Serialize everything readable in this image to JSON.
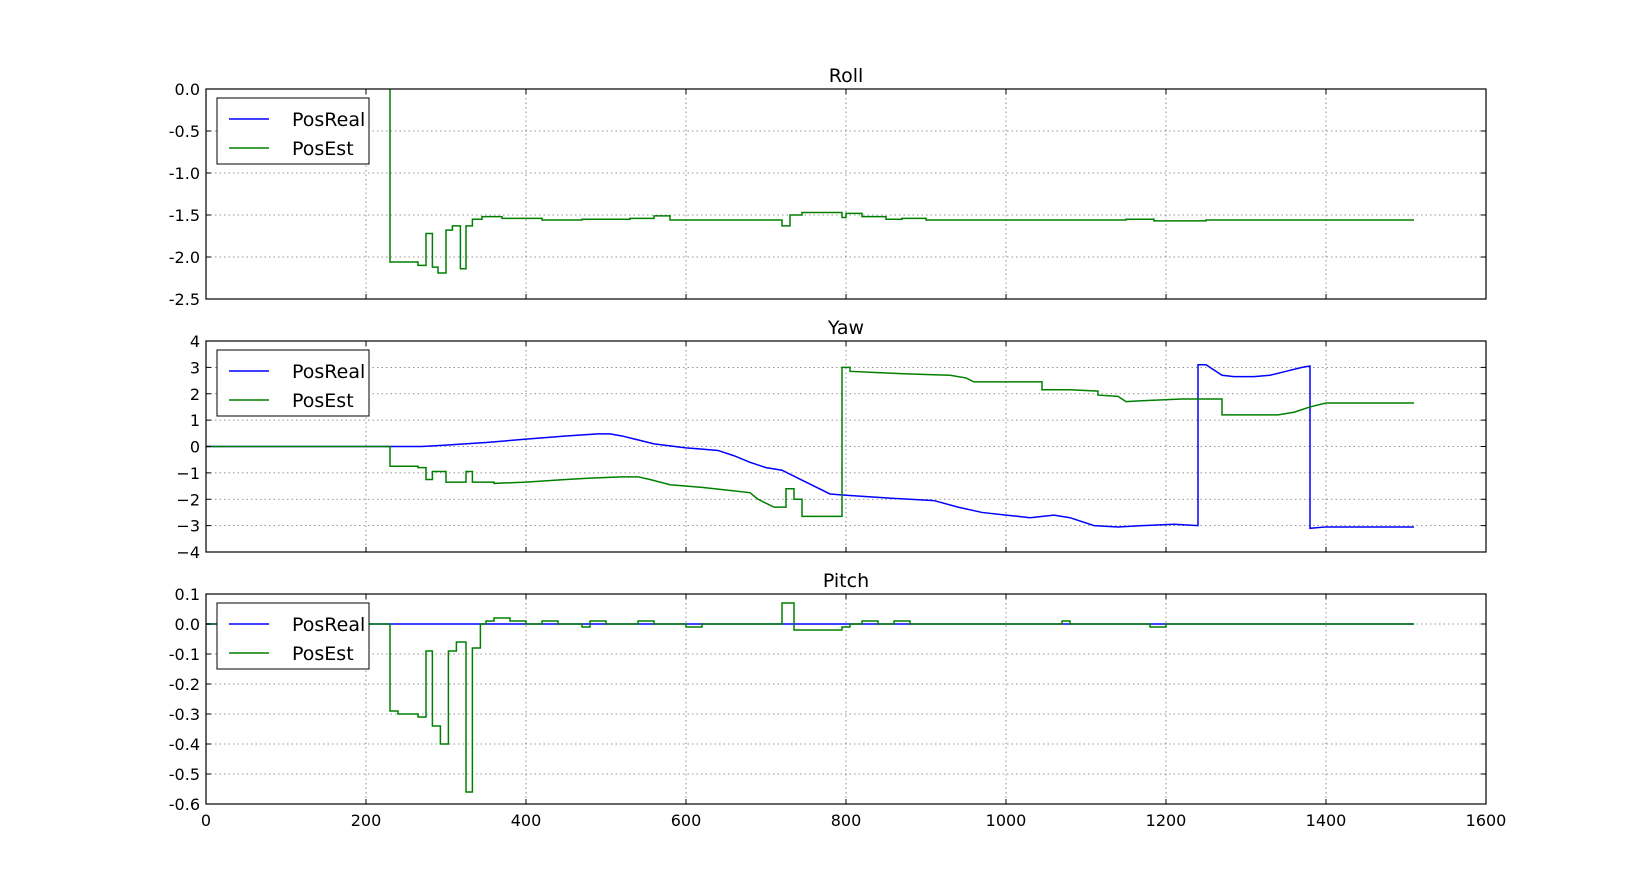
{
  "chart_data": [
    {
      "type": "line",
      "title": "Roll",
      "xlim": [
        0,
        1600
      ],
      "ylim": [
        -2.5,
        0.0
      ],
      "xticks": [
        "0",
        "200",
        "400",
        "600",
        "800",
        "1000",
        "1200",
        "1400",
        "1600"
      ],
      "yticks": [
        "0.0",
        "-0.5",
        "-1.0",
        "-1.5",
        "-2.0",
        "-2.5"
      ],
      "ytick_values": [
        0.0,
        -0.5,
        -1.0,
        -1.5,
        -2.0,
        -2.5
      ],
      "show_xtick_labels": false,
      "grid": true,
      "legend": "upper-left",
      "series": [
        {
          "name": "PosReal",
          "color": "#0000ff",
          "points": []
        },
        {
          "name": "PosEst",
          "color": "#008000",
          "points": [
            [
              230,
              0.0
            ],
            [
              230,
              -2.06
            ],
            [
              265,
              -2.06
            ],
            [
              265,
              -2.1
            ],
            [
              275,
              -2.1
            ],
            [
              275,
              -1.72
            ],
            [
              283,
              -1.72
            ],
            [
              283,
              -2.12
            ],
            [
              290,
              -2.12
            ],
            [
              290,
              -2.19
            ],
            [
              300,
              -2.19
            ],
            [
              300,
              -1.68
            ],
            [
              308,
              -1.68
            ],
            [
              308,
              -1.63
            ],
            [
              318,
              -1.63
            ],
            [
              318,
              -2.14
            ],
            [
              325,
              -2.14
            ],
            [
              325,
              -1.63
            ],
            [
              333,
              -1.63
            ],
            [
              333,
              -1.55
            ],
            [
              345,
              -1.55
            ],
            [
              345,
              -1.52
            ],
            [
              370,
              -1.52
            ],
            [
              370,
              -1.54
            ],
            [
              420,
              -1.54
            ],
            [
              420,
              -1.56
            ],
            [
              470,
              -1.56
            ],
            [
              470,
              -1.55
            ],
            [
              530,
              -1.55
            ],
            [
              530,
              -1.54
            ],
            [
              560,
              -1.54
            ],
            [
              560,
              -1.51
            ],
            [
              580,
              -1.51
            ],
            [
              580,
              -1.56
            ],
            [
              720,
              -1.56
            ],
            [
              720,
              -1.63
            ],
            [
              730,
              -1.63
            ],
            [
              730,
              -1.5
            ],
            [
              745,
              -1.5
            ],
            [
              745,
              -1.47
            ],
            [
              795,
              -1.47
            ],
            [
              795,
              -1.53
            ],
            [
              800,
              -1.53
            ],
            [
              800,
              -1.48
            ],
            [
              820,
              -1.48
            ],
            [
              820,
              -1.52
            ],
            [
              850,
              -1.52
            ],
            [
              850,
              -1.55
            ],
            [
              870,
              -1.55
            ],
            [
              870,
              -1.54
            ],
            [
              900,
              -1.54
            ],
            [
              900,
              -1.56
            ],
            [
              1150,
              -1.56
            ],
            [
              1150,
              -1.55
            ],
            [
              1185,
              -1.55
            ],
            [
              1185,
              -1.57
            ],
            [
              1250,
              -1.57
            ],
            [
              1250,
              -1.56
            ],
            [
              1510,
              -1.56
            ]
          ]
        }
      ]
    },
    {
      "type": "line",
      "title": "Yaw",
      "xlim": [
        0,
        1600
      ],
      "ylim": [
        -4,
        4
      ],
      "xticks": [
        "0",
        "200",
        "400",
        "600",
        "800",
        "1000",
        "1200",
        "1400",
        "1600"
      ],
      "yticks": [
        "4",
        "3",
        "2",
        "1",
        "0",
        "−1",
        "−2",
        "−3",
        "−4"
      ],
      "ytick_values": [
        4,
        3,
        2,
        1,
        0,
        -1,
        -2,
        -3,
        -4
      ],
      "show_xtick_labels": false,
      "grid": true,
      "legend": "upper-left",
      "series": [
        {
          "name": "PosReal",
          "color": "#0000ff",
          "points": [
            [
              0,
              0.0
            ],
            [
              270,
              0.0
            ],
            [
              300,
              0.05
            ],
            [
              350,
              0.15
            ],
            [
              400,
              0.28
            ],
            [
              450,
              0.4
            ],
            [
              490,
              0.48
            ],
            [
              505,
              0.48
            ],
            [
              520,
              0.4
            ],
            [
              540,
              0.25
            ],
            [
              560,
              0.1
            ],
            [
              600,
              -0.05
            ],
            [
              620,
              -0.1
            ],
            [
              640,
              -0.15
            ],
            [
              660,
              -0.35
            ],
            [
              680,
              -0.6
            ],
            [
              700,
              -0.8
            ],
            [
              720,
              -0.9
            ],
            [
              740,
              -1.2
            ],
            [
              760,
              -1.5
            ],
            [
              780,
              -1.8
            ],
            [
              800,
              -1.85
            ],
            [
              850,
              -1.95
            ],
            [
              880,
              -2.0
            ],
            [
              910,
              -2.05
            ],
            [
              940,
              -2.3
            ],
            [
              970,
              -2.5
            ],
            [
              1000,
              -2.6
            ],
            [
              1030,
              -2.7
            ],
            [
              1060,
              -2.6
            ],
            [
              1080,
              -2.7
            ],
            [
              1110,
              -3.0
            ],
            [
              1140,
              -3.05
            ],
            [
              1170,
              -3.0
            ],
            [
              1210,
              -2.95
            ],
            [
              1240,
              -3.0
            ],
            [
              1240,
              3.1
            ],
            [
              1250,
              3.1
            ],
            [
              1260,
              2.9
            ],
            [
              1270,
              2.7
            ],
            [
              1285,
              2.65
            ],
            [
              1310,
              2.65
            ],
            [
              1330,
              2.7
            ],
            [
              1350,
              2.85
            ],
            [
              1370,
              3.0
            ],
            [
              1380,
              3.05
            ],
            [
              1380,
              -3.1
            ],
            [
              1400,
              -3.05
            ],
            [
              1510,
              -3.05
            ]
          ]
        },
        {
          "name": "PosEst",
          "color": "#008000",
          "points": [
            [
              0,
              0.0
            ],
            [
              230,
              0.0
            ],
            [
              230,
              -0.75
            ],
            [
              265,
              -0.75
            ],
            [
              265,
              -0.8
            ],
            [
              275,
              -0.8
            ],
            [
              275,
              -1.25
            ],
            [
              283,
              -1.25
            ],
            [
              283,
              -0.95
            ],
            [
              300,
              -0.95
            ],
            [
              300,
              -1.35
            ],
            [
              325,
              -1.35
            ],
            [
              325,
              -0.95
            ],
            [
              333,
              -0.95
            ],
            [
              333,
              -1.35
            ],
            [
              360,
              -1.35
            ],
            [
              360,
              -1.4
            ],
            [
              400,
              -1.35
            ],
            [
              450,
              -1.25
            ],
            [
              480,
              -1.2
            ],
            [
              520,
              -1.15
            ],
            [
              540,
              -1.15
            ],
            [
              555,
              -1.25
            ],
            [
              580,
              -1.45
            ],
            [
              620,
              -1.55
            ],
            [
              650,
              -1.65
            ],
            [
              680,
              -1.75
            ],
            [
              690,
              -2.0
            ],
            [
              710,
              -2.3
            ],
            [
              725,
              -2.3
            ],
            [
              725,
              -1.6
            ],
            [
              735,
              -1.6
            ],
            [
              735,
              -2.0
            ],
            [
              745,
              -2.0
            ],
            [
              745,
              -2.65
            ],
            [
              795,
              -2.65
            ],
            [
              795,
              3.0
            ],
            [
              805,
              3.0
            ],
            [
              805,
              2.85
            ],
            [
              840,
              2.8
            ],
            [
              880,
              2.75
            ],
            [
              930,
              2.7
            ],
            [
              950,
              2.6
            ],
            [
              960,
              2.45
            ],
            [
              1020,
              2.45
            ],
            [
              1045,
              2.45
            ],
            [
              1045,
              2.15
            ],
            [
              1080,
              2.15
            ],
            [
              1115,
              2.1
            ],
            [
              1115,
              1.95
            ],
            [
              1140,
              1.9
            ],
            [
              1150,
              1.7
            ],
            [
              1180,
              1.75
            ],
            [
              1220,
              1.8
            ],
            [
              1270,
              1.8
            ],
            [
              1270,
              1.2
            ],
            [
              1340,
              1.2
            ],
            [
              1360,
              1.3
            ],
            [
              1380,
              1.5
            ],
            [
              1400,
              1.65
            ],
            [
              1510,
              1.65
            ]
          ]
        }
      ]
    },
    {
      "type": "line",
      "title": "Pitch",
      "xlim": [
        0,
        1600
      ],
      "ylim": [
        -0.6,
        0.1
      ],
      "xticks": [
        "0",
        "200",
        "400",
        "600",
        "800",
        "1000",
        "1200",
        "1400",
        "1600"
      ],
      "yticks": [
        "0.1",
        "0.0",
        "-0.1",
        "-0.2",
        "-0.3",
        "-0.4",
        "-0.5",
        "-0.6"
      ],
      "ytick_values": [
        0.1,
        0.0,
        -0.1,
        -0.2,
        -0.3,
        -0.4,
        -0.5,
        -0.6
      ],
      "show_xtick_labels": true,
      "grid": true,
      "legend": "upper-left",
      "series": [
        {
          "name": "PosReal",
          "color": "#0000ff",
          "points": [
            [
              0,
              0.0
            ],
            [
              1510,
              0.0
            ]
          ]
        },
        {
          "name": "PosEst",
          "color": "#008000",
          "points": [
            [
              0,
              0.0
            ],
            [
              230,
              0.0
            ],
            [
              230,
              -0.29
            ],
            [
              240,
              -0.29
            ],
            [
              240,
              -0.3
            ],
            [
              265,
              -0.3
            ],
            [
              265,
              -0.31
            ],
            [
              275,
              -0.31
            ],
            [
              275,
              -0.09
            ],
            [
              283,
              -0.09
            ],
            [
              283,
              -0.34
            ],
            [
              293,
              -0.34
            ],
            [
              293,
              -0.4
            ],
            [
              303,
              -0.4
            ],
            [
              303,
              -0.09
            ],
            [
              313,
              -0.09
            ],
            [
              313,
              -0.06
            ],
            [
              325,
              -0.06
            ],
            [
              325,
              -0.56
            ],
            [
              333,
              -0.56
            ],
            [
              333,
              -0.08
            ],
            [
              343,
              -0.08
            ],
            [
              343,
              0.0
            ],
            [
              350,
              0.0
            ],
            [
              350,
              0.01
            ],
            [
              360,
              0.01
            ],
            [
              360,
              0.02
            ],
            [
              380,
              0.02
            ],
            [
              380,
              0.01
            ],
            [
              400,
              0.01
            ],
            [
              400,
              0.0
            ],
            [
              420,
              0.0
            ],
            [
              420,
              0.01
            ],
            [
              440,
              0.01
            ],
            [
              440,
              0.0
            ],
            [
              470,
              0.0
            ],
            [
              470,
              -0.01
            ],
            [
              480,
              -0.01
            ],
            [
              480,
              0.01
            ],
            [
              500,
              0.01
            ],
            [
              500,
              0.0
            ],
            [
              540,
              0.0
            ],
            [
              540,
              0.01
            ],
            [
              560,
              0.01
            ],
            [
              560,
              0.0
            ],
            [
              600,
              0.0
            ],
            [
              600,
              -0.01
            ],
            [
              620,
              -0.01
            ],
            [
              620,
              0.0
            ],
            [
              720,
              0.0
            ],
            [
              720,
              0.07
            ],
            [
              735,
              0.07
            ],
            [
              735,
              -0.02
            ],
            [
              795,
              -0.02
            ],
            [
              795,
              -0.01
            ],
            [
              805,
              -0.01
            ],
            [
              805,
              0.0
            ],
            [
              820,
              0.0
            ],
            [
              820,
              0.01
            ],
            [
              840,
              0.01
            ],
            [
              840,
              0.0
            ],
            [
              860,
              0.0
            ],
            [
              860,
              0.01
            ],
            [
              880,
              0.01
            ],
            [
              880,
              0.0
            ],
            [
              1070,
              0.0
            ],
            [
              1070,
              0.01
            ],
            [
              1080,
              0.01
            ],
            [
              1080,
              0.0
            ],
            [
              1180,
              0.0
            ],
            [
              1180,
              -0.01
            ],
            [
              1200,
              -0.01
            ],
            [
              1200,
              0.0
            ],
            [
              1510,
              0.0
            ]
          ]
        }
      ]
    }
  ]
}
